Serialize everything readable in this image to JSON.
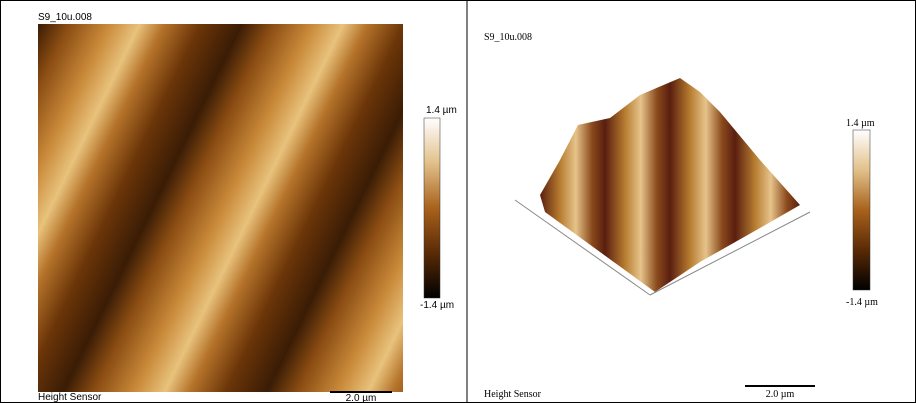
{
  "left_panel": {
    "title": "S9_10u.008",
    "colorbar_max": "1.4 µm",
    "colorbar_min": "-1.4 µm",
    "channel": "Height Sensor",
    "scale_bar": "2.0 µm"
  },
  "right_panel": {
    "title": "S9_10u.008",
    "colorbar_max": "1.4 µm",
    "colorbar_min": "-1.4 µm",
    "channel": "Height Sensor",
    "scale_bar": "2.0 µm"
  }
}
